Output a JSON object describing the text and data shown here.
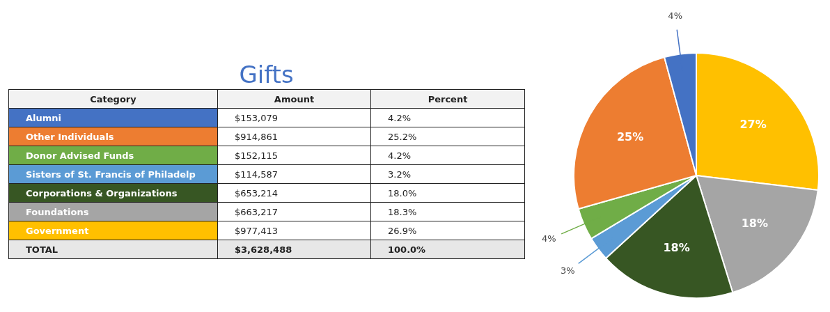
{
  "chart_data": [
    {
      "type": "other",
      "title": "Gifts",
      "ylabel": "Category",
      "categories": [
        "Amount",
        "Percent"
      ],
      "y_categories": [
        "Alumni",
        "Other Individuals",
        "Donor Advised Funds",
        "Sisters of St. Francis of Philadelp",
        "Corporations & Organizations",
        "Foundations",
        "Government",
        "TOTAL"
      ],
      "cell_labels": [
        [
          "$153,079",
          "4.2%"
        ],
        [
          "$914,861",
          "25.2%"
        ],
        [
          "$152,115",
          "4.2%"
        ],
        [
          "$114,587",
          "3.2%"
        ],
        [
          "$653,214",
          "18.0%"
        ],
        [
          "$663,217",
          "18.3%"
        ],
        [
          "$977,413",
          "26.9%"
        ],
        [
          "$3,628,488",
          "100.0%"
        ]
      ]
    },
    {
      "type": "pie",
      "categories": [
        null,
        null,
        null,
        null,
        null,
        null,
        null
      ],
      "values": [
        26.9,
        18.3,
        18.0,
        3.2,
        4.2,
        25.2,
        4.2
      ],
      "colors": [
        "#ffc000",
        "#a5a5a5",
        "#375623",
        "#5b9bd5",
        "#70ad47",
        "#ed7d31",
        "#4472c4"
      ],
      "value_labels": [
        "27%",
        "18%",
        "18%",
        "3%",
        "4%",
        "25%",
        "4%"
      ],
      "legend": false
    }
  ]
}
